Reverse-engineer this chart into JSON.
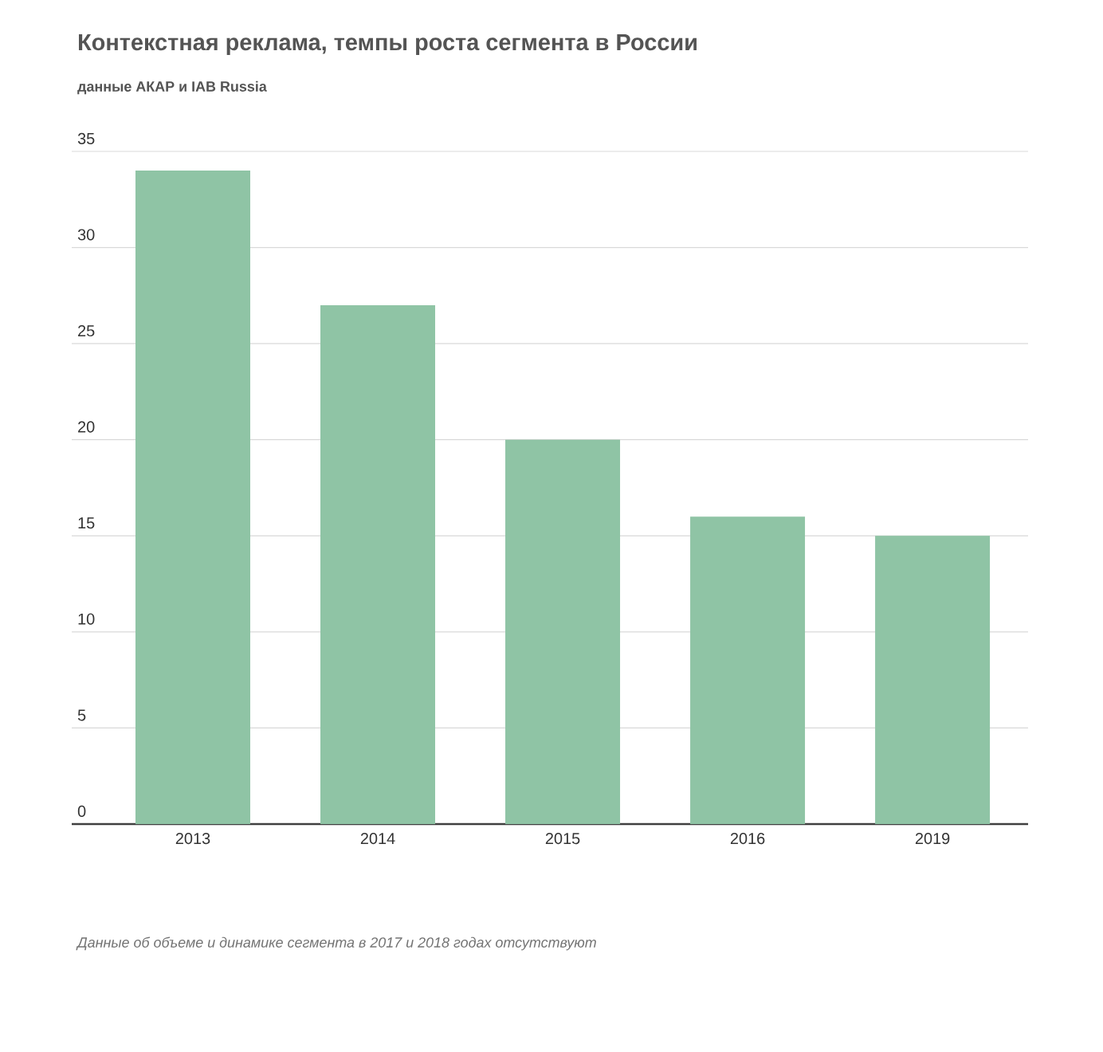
{
  "chart_data": {
    "type": "bar",
    "title": "Контекстная реклама, темпы роста сегмента в России",
    "subtitle": "данные АКАР и IAB Russia",
    "categories": [
      "2013",
      "2014",
      "2015",
      "2016",
      "2019"
    ],
    "values": [
      34,
      27,
      20,
      16,
      15
    ],
    "color": "#8fc4a5",
    "ylim": [
      0,
      35
    ],
    "yticks": [
      0,
      5,
      10,
      15,
      20,
      25,
      30,
      35
    ],
    "grid": "y",
    "annotations": [
      "Данные об объеме и динамике сегмента в 2017 и 2018 годах отсутствуют"
    ]
  }
}
